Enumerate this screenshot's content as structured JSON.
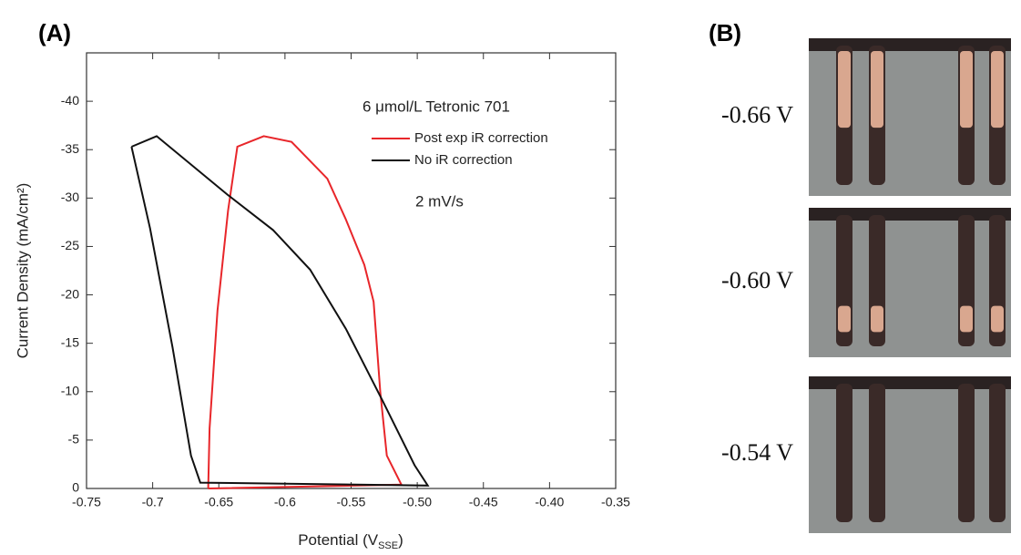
{
  "chart_data": {
    "type": "line",
    "panel_label": "(A)",
    "x_label": [
      "Potential (V",
      "SSE",
      ")"
    ],
    "y_label": "Current Density (mA/cm²)",
    "annotations": [
      "6 μmol/L Tetronic 701",
      "2 mV/s"
    ],
    "xlim": [
      -0.75,
      -0.35
    ],
    "xticks": [
      -0.75,
      -0.7,
      -0.65,
      -0.6,
      -0.55,
      {
        "value": -0.5,
        "label": "-0.50"
      },
      -0.45,
      {
        "value": -0.4,
        "label": "-0.40"
      },
      -0.35
    ],
    "ylim": [
      0,
      -45
    ],
    "yticks": [
      0,
      -5,
      -10,
      -15,
      -20,
      -25,
      -30,
      -35,
      -40
    ],
    "series": [
      {
        "name": "Post exp iR correction",
        "color": "#e8262a",
        "x": [
          -0.658,
          -0.657,
          -0.651,
          -0.643,
          -0.636,
          -0.616,
          -0.595,
          -0.568,
          -0.554,
          -0.54,
          -0.533,
          -0.528,
          -0.523,
          -0.512,
          -0.658
        ],
        "values": [
          0,
          -6.2,
          -18.4,
          -28.7,
          -35.3,
          -36.4,
          -35.8,
          -32.0,
          -27.8,
          -23.1,
          -19.3,
          -10.0,
          -3.4,
          -0.4,
          0
        ]
      },
      {
        "name": "No iR correction",
        "color": "#111111",
        "x": [
          -0.716,
          -0.697,
          -0.643,
          -0.609,
          -0.581,
          -0.554,
          -0.526,
          -0.502,
          -0.492,
          -0.664,
          -0.671,
          -0.685,
          -0.702,
          -0.716
        ],
        "values": [
          -35.3,
          -36.4,
          -30.3,
          -26.7,
          -22.6,
          -16.5,
          -9.0,
          -2.4,
          -0.3,
          -0.6,
          -3.4,
          -14.6,
          -26.9,
          -35.3
        ]
      }
    ]
  },
  "panel_b": {
    "label": "(B)",
    "images": [
      {
        "label": "-0.66 V"
      },
      {
        "label": "-0.60 V"
      },
      {
        "label": "-0.54 V"
      }
    ]
  }
}
